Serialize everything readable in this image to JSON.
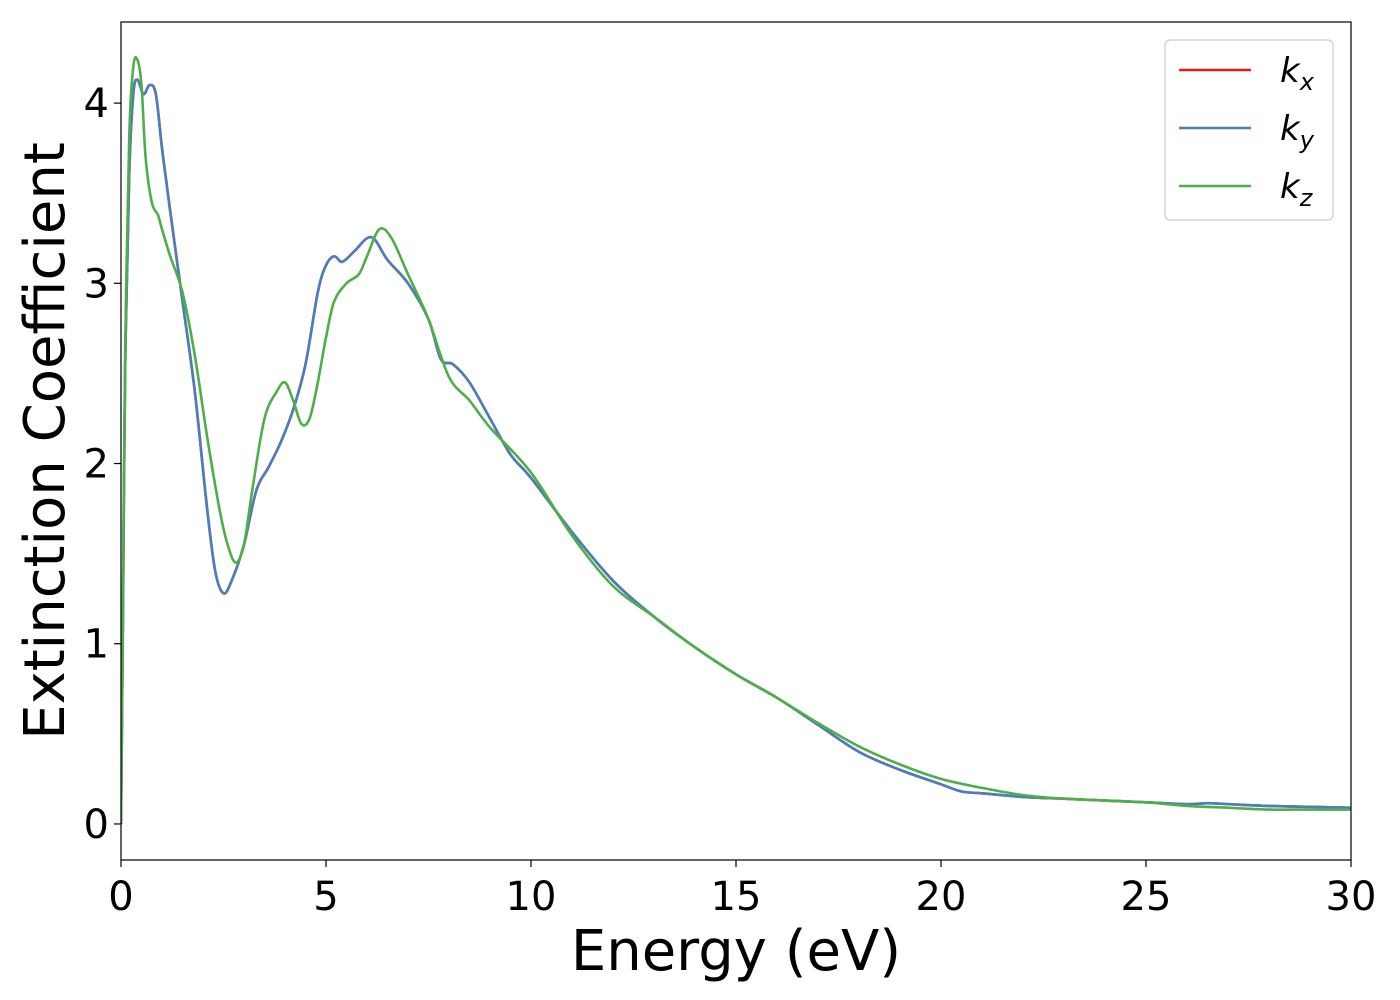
{
  "chart_data": {
    "type": "line",
    "xlabel": "Energy (eV)",
    "ylabel": "Extinction Coefficient",
    "xlim": [
      0,
      30
    ],
    "ylim": [
      -0.2,
      4.45
    ],
    "xticks": [
      0,
      5,
      10,
      15,
      20,
      25,
      30
    ],
    "yticks": [
      0,
      1,
      2,
      3,
      4
    ],
    "grid": false,
    "legend_position": "top-right",
    "series": [
      {
        "name": "k_x",
        "label_main": "k",
        "label_sub": "x",
        "color": "#e41a1c",
        "x": [
          0,
          0.05,
          0.1,
          0.2,
          0.3,
          0.4,
          0.55,
          0.7,
          0.85,
          1.0,
          1.2,
          1.5,
          1.8,
          2.1,
          2.3,
          2.5,
          2.7,
          3.0,
          3.3,
          3.6,
          3.9,
          4.2,
          4.5,
          4.8,
          5.0,
          5.2,
          5.4,
          5.7,
          6.0,
          6.2,
          6.5,
          7.0,
          7.5,
          7.8,
          8.1,
          8.5,
          9.0,
          9.5,
          10.0,
          11.0,
          12.0,
          13.0,
          14.0,
          15.0,
          16.0,
          17.0,
          18.0,
          19.0,
          20.0,
          20.5,
          21.0,
          22.0,
          23.0,
          24.0,
          25.0,
          26.0,
          26.5,
          27.0,
          28.0,
          29.0,
          30.0
        ],
        "y": [
          0.0,
          1.2,
          2.5,
          3.6,
          4.05,
          4.13,
          4.05,
          4.1,
          4.05,
          3.75,
          3.4,
          2.9,
          2.4,
          1.75,
          1.4,
          1.28,
          1.35,
          1.55,
          1.85,
          1.98,
          2.12,
          2.3,
          2.55,
          2.95,
          3.1,
          3.15,
          3.12,
          3.18,
          3.25,
          3.24,
          3.13,
          3.0,
          2.8,
          2.58,
          2.55,
          2.45,
          2.25,
          2.05,
          1.92,
          1.62,
          1.35,
          1.15,
          0.98,
          0.83,
          0.7,
          0.55,
          0.4,
          0.3,
          0.22,
          0.18,
          0.17,
          0.15,
          0.14,
          0.13,
          0.12,
          0.11,
          0.115,
          0.11,
          0.1,
          0.095,
          0.09
        ]
      },
      {
        "name": "k_y",
        "label_main": "k",
        "label_sub": "y",
        "color": "#4a7fbd",
        "x": [
          0,
          0.05,
          0.1,
          0.2,
          0.3,
          0.4,
          0.55,
          0.7,
          0.85,
          1.0,
          1.2,
          1.5,
          1.8,
          2.1,
          2.3,
          2.5,
          2.7,
          3.0,
          3.3,
          3.6,
          3.9,
          4.2,
          4.5,
          4.8,
          5.0,
          5.2,
          5.4,
          5.7,
          6.0,
          6.2,
          6.5,
          7.0,
          7.5,
          7.8,
          8.1,
          8.5,
          9.0,
          9.5,
          10.0,
          11.0,
          12.0,
          13.0,
          14.0,
          15.0,
          16.0,
          17.0,
          18.0,
          19.0,
          20.0,
          20.5,
          21.0,
          22.0,
          23.0,
          24.0,
          25.0,
          26.0,
          26.5,
          27.0,
          28.0,
          29.0,
          30.0
        ],
        "y": [
          0.0,
          1.2,
          2.5,
          3.6,
          4.05,
          4.13,
          4.05,
          4.1,
          4.05,
          3.75,
          3.4,
          2.9,
          2.4,
          1.75,
          1.4,
          1.28,
          1.35,
          1.55,
          1.85,
          1.98,
          2.12,
          2.3,
          2.55,
          2.95,
          3.1,
          3.15,
          3.12,
          3.18,
          3.25,
          3.24,
          3.13,
          3.0,
          2.8,
          2.58,
          2.55,
          2.45,
          2.25,
          2.05,
          1.92,
          1.62,
          1.35,
          1.15,
          0.98,
          0.83,
          0.7,
          0.55,
          0.4,
          0.3,
          0.22,
          0.18,
          0.17,
          0.15,
          0.14,
          0.13,
          0.12,
          0.11,
          0.115,
          0.11,
          0.1,
          0.095,
          0.09
        ]
      },
      {
        "name": "k_z",
        "label_main": "k",
        "label_sub": "z",
        "color": "#4daf4a",
        "x": [
          0,
          0.05,
          0.1,
          0.2,
          0.3,
          0.4,
          0.5,
          0.6,
          0.75,
          0.9,
          1.0,
          1.2,
          1.5,
          1.8,
          2.1,
          2.4,
          2.6,
          2.8,
          3.0,
          3.2,
          3.5,
          3.8,
          4.0,
          4.2,
          4.4,
          4.6,
          4.8,
          5.0,
          5.2,
          5.5,
          5.8,
          6.0,
          6.3,
          6.6,
          7.0,
          7.5,
          8.0,
          8.5,
          9.0,
          10.0,
          11.0,
          12.0,
          13.0,
          14.0,
          15.0,
          16.0,
          17.0,
          18.0,
          19.0,
          20.0,
          21.0,
          22.0,
          23.0,
          24.0,
          25.0,
          26.0,
          27.0,
          28.0,
          29.0,
          30.0
        ],
        "y": [
          0.0,
          1.3,
          2.6,
          3.8,
          4.2,
          4.24,
          4.1,
          3.7,
          3.45,
          3.38,
          3.3,
          3.15,
          2.95,
          2.6,
          2.15,
          1.75,
          1.55,
          1.45,
          1.55,
          1.85,
          2.25,
          2.4,
          2.45,
          2.35,
          2.22,
          2.25,
          2.45,
          2.7,
          2.9,
          3.0,
          3.05,
          3.15,
          3.3,
          3.25,
          3.05,
          2.8,
          2.48,
          2.35,
          2.2,
          1.95,
          1.6,
          1.32,
          1.15,
          0.98,
          0.83,
          0.7,
          0.56,
          0.43,
          0.33,
          0.25,
          0.2,
          0.16,
          0.14,
          0.13,
          0.12,
          0.1,
          0.09,
          0.08,
          0.08,
          0.08
        ]
      }
    ]
  }
}
